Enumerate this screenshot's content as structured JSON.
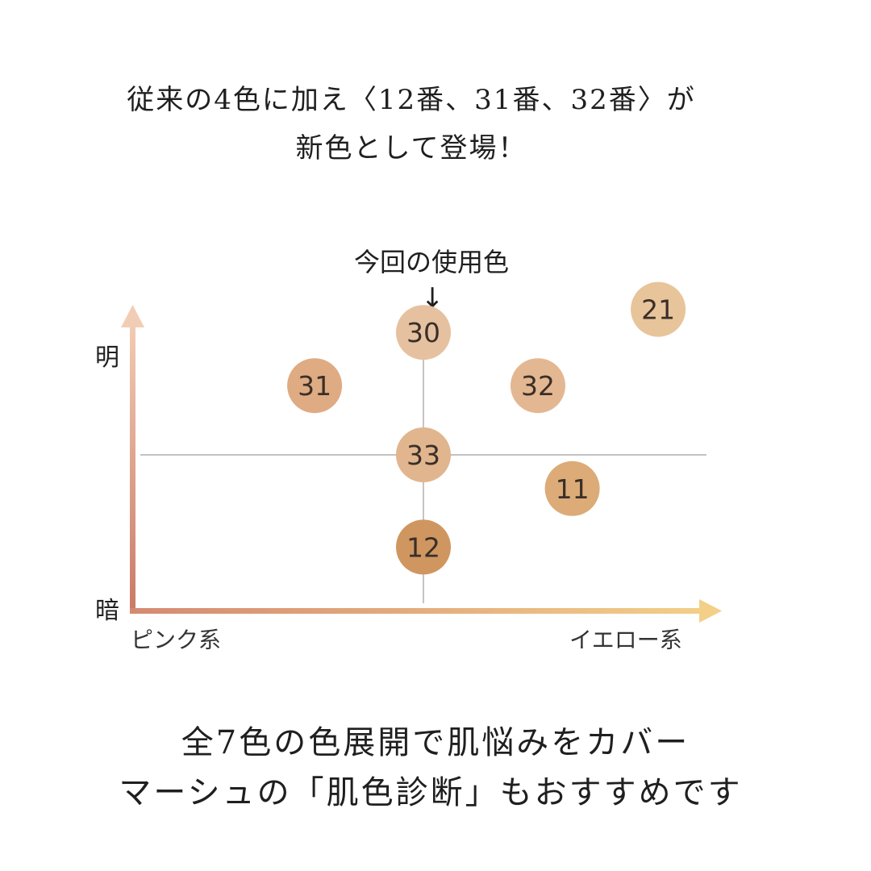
{
  "headline": {
    "line1": "従来の4色に加え〈12番、31番、32番〉が",
    "line2": "新色として登場！"
  },
  "chart_data": {
    "type": "scatter",
    "caption": "今回の使用色",
    "caption_arrow": "↓",
    "highlighted": "30",
    "y_axis": {
      "top_label": "明",
      "bottom_label": "暗"
    },
    "x_axis": {
      "left_label": "ピンク系",
      "right_label": "イエロー系"
    },
    "x_range": [
      -1,
      1
    ],
    "y_range": [
      -1,
      1
    ],
    "points": [
      {
        "label": "30",
        "x": 0.0,
        "y": 0.69,
        "color": "#e6c1a0"
      },
      {
        "label": "21",
        "x": 0.82,
        "y": 0.82,
        "color": "#e8c49a"
      },
      {
        "label": "31",
        "x": -0.38,
        "y": 0.39,
        "color": "#dfab83"
      },
      {
        "label": "32",
        "x": 0.4,
        "y": 0.39,
        "color": "#e3b791"
      },
      {
        "label": "33",
        "x": 0.0,
        "y": 0.0,
        "color": "#e1b58e"
      },
      {
        "label": "11",
        "x": 0.52,
        "y": -0.19,
        "color": "#dcab78"
      },
      {
        "label": "12",
        "x": 0.0,
        "y": -0.52,
        "color": "#cf9660"
      }
    ]
  },
  "footer": {
    "line1": "全7色の色展開で肌悩みをカバー",
    "line2": "マーシュの「肌色診断」もおすすめです"
  }
}
